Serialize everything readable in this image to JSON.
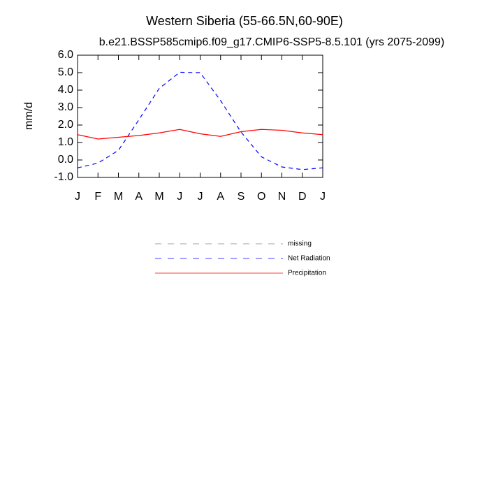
{
  "chart_data": {
    "type": "line",
    "title": "Western Siberia (55-66.5N,60-90E)",
    "subtitle": "b.e21.BSSP585cmip6.f09_g17.CMIP6-SSP5-8.5.101 (yrs 2075-2099)",
    "y_label": "mm/d",
    "categories": [
      "J",
      "F",
      "M",
      "A",
      "M",
      "J",
      "J",
      "A",
      "S",
      "O",
      "N",
      "D",
      "J"
    ],
    "ylim": [
      -1,
      6
    ],
    "yticks": [
      {
        "value": -1,
        "label": "-1.0"
      },
      {
        "value": 0,
        "label": "0.0"
      },
      {
        "value": 1,
        "label": "1.0"
      },
      {
        "value": 2,
        "label": "2.0"
      },
      {
        "value": 3,
        "label": "3.0"
      },
      {
        "value": 4,
        "label": "4.0"
      },
      {
        "value": 5,
        "label": "5.0"
      },
      {
        "value": 6,
        "label": "6.0"
      }
    ],
    "series": [
      {
        "name": "missing",
        "color": "#808080",
        "dashed": true,
        "values": [
          null,
          null,
          null,
          null,
          null,
          null,
          null,
          null,
          null,
          null,
          null,
          null,
          null
        ]
      },
      {
        "name": "Net Radiation",
        "color": "#0000ff",
        "dashed": true,
        "values": [
          -0.45,
          -0.18,
          0.55,
          2.3,
          4.1,
          5.02,
          5.0,
          3.4,
          1.6,
          0.18,
          -0.4,
          -0.55,
          -0.45
        ]
      },
      {
        "name": "Precipitation",
        "color": "#ff0000",
        "dashed": false,
        "values": [
          1.45,
          1.2,
          1.3,
          1.4,
          1.55,
          1.75,
          1.5,
          1.35,
          1.62,
          1.75,
          1.7,
          1.55,
          1.45
        ]
      }
    ]
  }
}
